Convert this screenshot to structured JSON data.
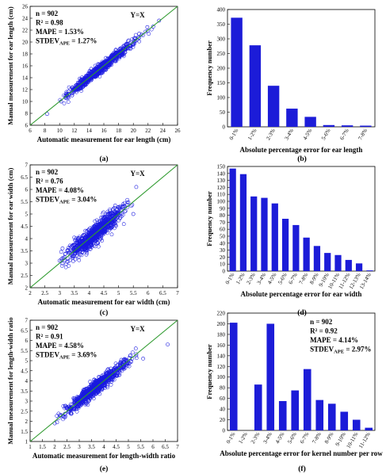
{
  "panels": [
    {
      "id": "a",
      "type": "scatter",
      "caption": "(a)",
      "stats": [
        "n = 902",
        "R² = 0.98",
        "MAPE = 1.53%",
        "STDEV_APE = 1.27%"
      ],
      "identity_label": "Y=X",
      "xlabel": "Automatic measurement for ear length (cm)",
      "ylabel": "Manual measurement for ear length (cm)",
      "xlim": [
        6,
        26
      ],
      "ylim": [
        6,
        26
      ],
      "xticks": [
        "6",
        "8",
        "10",
        "12",
        "14",
        "16",
        "18",
        "20",
        "22",
        "24",
        "26"
      ],
      "yticks": [
        "6",
        "8",
        "10",
        "12",
        "14",
        "16",
        "18",
        "20",
        "22",
        "24",
        "26"
      ],
      "cloud": {
        "x_min": 10,
        "x_max": 23.5,
        "x_center": 15.5,
        "x_sd": 2.2,
        "y_sd": 0.4,
        "n": 902
      },
      "outliers": [
        [
          8.3,
          7.9
        ],
        [
          10.2,
          10.0
        ],
        [
          21.9,
          22.5
        ],
        [
          22.7,
          22.6
        ],
        [
          23.5,
          23.6
        ],
        [
          20.8,
          21.4
        ]
      ]
    },
    {
      "id": "b",
      "type": "bar",
      "caption": "(b)",
      "xlabel": "Absolute percentage error for ear length",
      "ylabel": "Frequency number",
      "categories": [
        "0-1%",
        "1-2%",
        "2-3%",
        "3-4%",
        "4-5%",
        "5-6%",
        "6-7%",
        "7-8%"
      ],
      "values": [
        372,
        278,
        140,
        62,
        34,
        6,
        5,
        4
      ],
      "ylim": [
        0,
        400
      ],
      "yticks": [
        "0",
        "50",
        "100",
        "150",
        "200",
        "250",
        "300",
        "350",
        "400"
      ]
    },
    {
      "id": "c",
      "type": "scatter",
      "caption": "(c)",
      "stats": [
        "n = 902",
        "R² = 0.76",
        "MAPE = 4.08%",
        "STDEV_APE = 3.04%"
      ],
      "identity_label": "Y=X",
      "xlabel": "Automatic measurement for ear width (cm)",
      "ylabel": "Manual measurement for ear width (cm)",
      "xlim": [
        2,
        7
      ],
      "ylim": [
        2,
        7
      ],
      "xticks": [
        "2",
        "2.5",
        "3",
        "3.5",
        "4",
        "4.5",
        "5",
        "5.5",
        "6",
        "6.5",
        "7"
      ],
      "yticks": [
        "2",
        "2.5",
        "3",
        "3.5",
        "4",
        "4.5",
        "5",
        "5.5",
        "6",
        "6.5",
        "7"
      ],
      "cloud": {
        "x_min": 3.0,
        "x_max": 5.6,
        "x_center": 4.2,
        "x_sd": 0.45,
        "y_sd": 0.2,
        "n": 902
      },
      "outliers": [
        [
          3.0,
          3.1
        ],
        [
          5.6,
          6.1
        ],
        [
          5.5,
          5.0
        ],
        [
          3.1,
          3.6
        ]
      ]
    },
    {
      "id": "d",
      "type": "bar",
      "caption": "(d)",
      "xlabel": "Absolute percentage error for ear width",
      "ylabel": "Frequency number",
      "categories": [
        "0-1%",
        "1-2%",
        "2-3%",
        "3-4%",
        "4-5%",
        "5-6%",
        "6-7%",
        "7-8%",
        "8-9%",
        "9-10%",
        "10-11%",
        "11-12%",
        "12-13%",
        "13-14%"
      ],
      "values": [
        147,
        139,
        107,
        105,
        97,
        75,
        66,
        48,
        36,
        26,
        23,
        16,
        11,
        1
      ],
      "ylim": [
        0,
        150
      ],
      "yticks": [
        "0",
        "10",
        "20",
        "30",
        "40",
        "50",
        "60",
        "70",
        "80",
        "90",
        "100",
        "110",
        "120",
        "130",
        "140",
        "150"
      ]
    },
    {
      "id": "e",
      "type": "scatter",
      "caption": "(e)",
      "stats": [
        "n = 902",
        "R² = 0.91",
        "MAPE = 4.58%",
        "STDEV_APE = 3.69%"
      ],
      "identity_label": "Y=X",
      "xlabel": "Automatic measurement for length-width ratio",
      "ylabel": "Manual measurement for length-width ratio",
      "xlim": [
        1,
        7
      ],
      "ylim": [
        1,
        7
      ],
      "xticks": [
        "1",
        "1.5",
        "2",
        "2.5",
        "3",
        "3.5",
        "4",
        "4.5",
        "5",
        "5.5",
        "6",
        "6.5",
        "7"
      ],
      "yticks": [
        "1",
        "1.5",
        "2",
        "2.5",
        "3",
        "3.5",
        "4",
        "4.5",
        "5",
        "5.5",
        "6",
        "6.5",
        "7"
      ],
      "cloud": {
        "x_min": 2.0,
        "x_max": 5.7,
        "x_center": 3.7,
        "x_sd": 0.6,
        "y_sd": 0.17,
        "n": 902
      },
      "outliers": [
        [
          6.6,
          5.8
        ],
        [
          5.3,
          5.6
        ],
        [
          2.0,
          1.9
        ],
        [
          2.2,
          2.3
        ],
        [
          5.6,
          5.1
        ]
      ]
    },
    {
      "id": "f",
      "type": "bar",
      "caption": "(f)",
      "stats": [
        "n = 902",
        "R² = 0.92",
        "MAPE = 4.14%",
        "STDEV_APE = 2.97%"
      ],
      "xlabel": "Absolute percentage error for kernel number per row",
      "ylabel": "Frequency number",
      "categories": [
        "0-1%",
        "1-2%",
        "2-3%",
        "3-4%",
        "4-5%",
        "5-6%",
        "6-7%",
        "7-8%",
        "8-9%",
        "9-10%",
        "10-11%",
        "11-12%"
      ],
      "values": [
        202,
        0,
        86,
        200,
        55,
        75,
        115,
        57,
        50,
        35,
        20,
        5
      ],
      "ylim": [
        0,
        220
      ],
      "yticks": [
        "0",
        "20",
        "40",
        "60",
        "80",
        "100",
        "120",
        "140",
        "160",
        "180",
        "200",
        "220"
      ]
    }
  ],
  "colors": {
    "bar": "#1c1cd8",
    "marker": "#1a1ae0",
    "identity_line": "#2e9a2e",
    "text": "#000000"
  }
}
